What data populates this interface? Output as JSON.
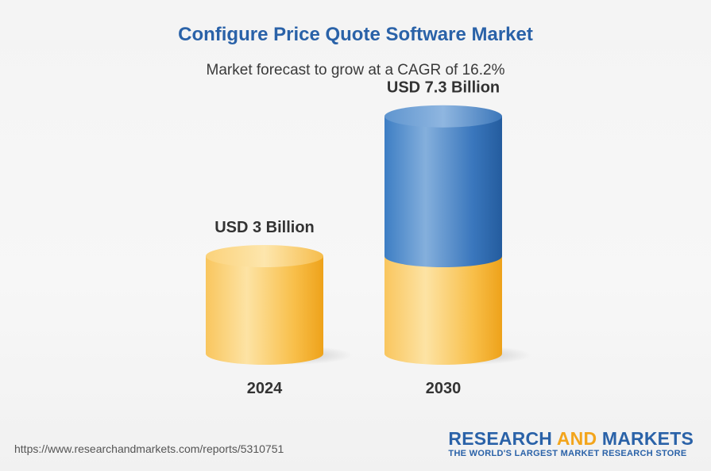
{
  "header": {
    "title": "Configure Price Quote Software Market",
    "subtitle": "Market forecast to grow at a CAGR of 16.2%"
  },
  "chart_data": {
    "type": "bar",
    "style": "3d-cylinder",
    "title": "Configure Price Quote Software Market",
    "subtitle": "Market forecast to grow at a CAGR of 16.2%",
    "categories": [
      "2024",
      "2030"
    ],
    "values": [
      3,
      7.3
    ],
    "unit": "USD Billion",
    "value_labels": [
      "USD 3 Billion",
      "USD 7.3 Billion"
    ],
    "stacked_base_value": 3,
    "colors": {
      "base": "#f7b83a",
      "growth": "#2f6fb5"
    }
  },
  "footer": {
    "url": "https://www.researchandmarkets.com/reports/5310751",
    "logo_word1": "RESEARCH",
    "logo_word2": "AND",
    "logo_word3": "MARKETS",
    "logo_tagline": "THE WORLD'S LARGEST MARKET RESEARCH STORE"
  }
}
